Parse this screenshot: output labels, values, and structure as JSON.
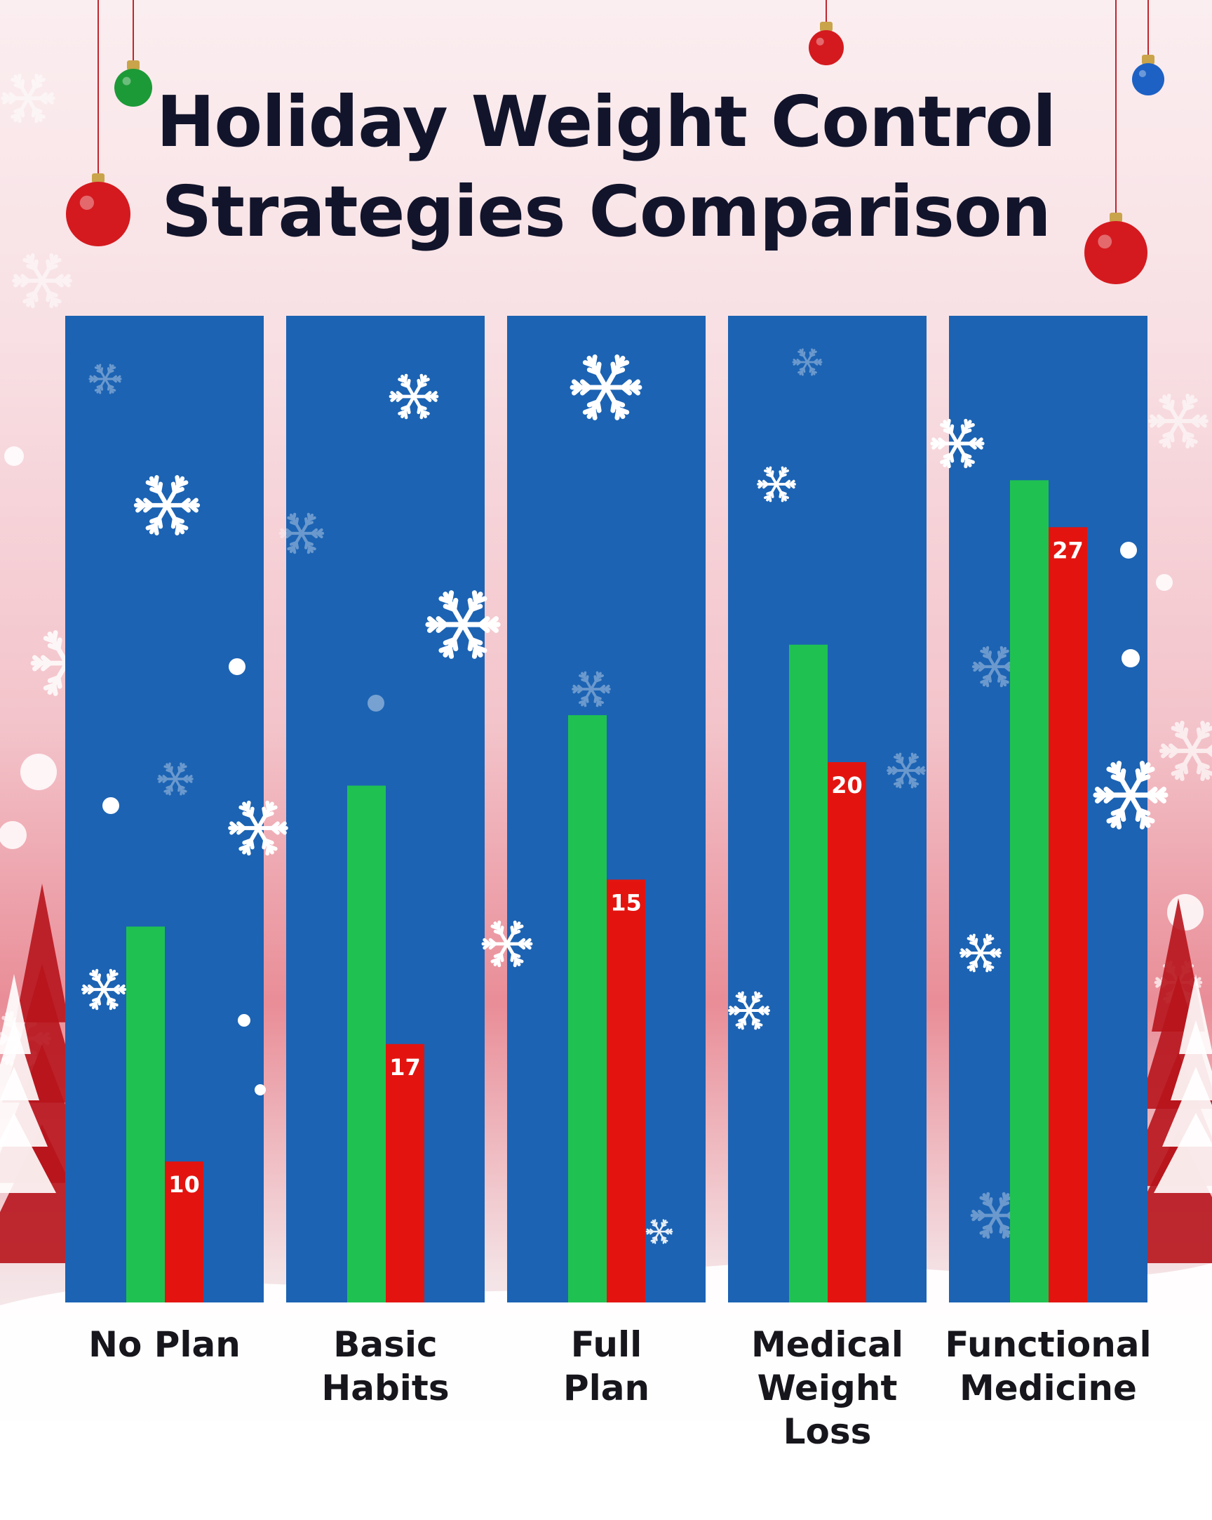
{
  "chart_data": {
    "type": "bar",
    "title": "Holiday Weight Control Strategies Comparison",
    "categories": [
      "No Plan",
      "Basic Habits",
      "Full Plan",
      "Medical Weight Loss",
      "Functional Medicine"
    ],
    "category_labels": [
      "No Plan",
      "Basic\nHabits",
      "Full\nPlan",
      "Medical\nWeight Loss",
      "Functional\nMedicine"
    ],
    "series": [
      {
        "values": [
          16,
          22,
          25,
          28,
          35
        ],
        "color": "#1fc251"
      },
      {
        "values": [
          6,
          11,
          18,
          23,
          33
        ],
        "color": "#e3140f"
      }
    ],
    "data_labels": [
      "10",
      "17",
      "15",
      "20",
      "27"
    ],
    "panel_color": "#1c63b3",
    "ylim": [
      0,
      42
    ],
    "grid": false,
    "legend": false,
    "xlabel": "",
    "ylabel": ""
  }
}
